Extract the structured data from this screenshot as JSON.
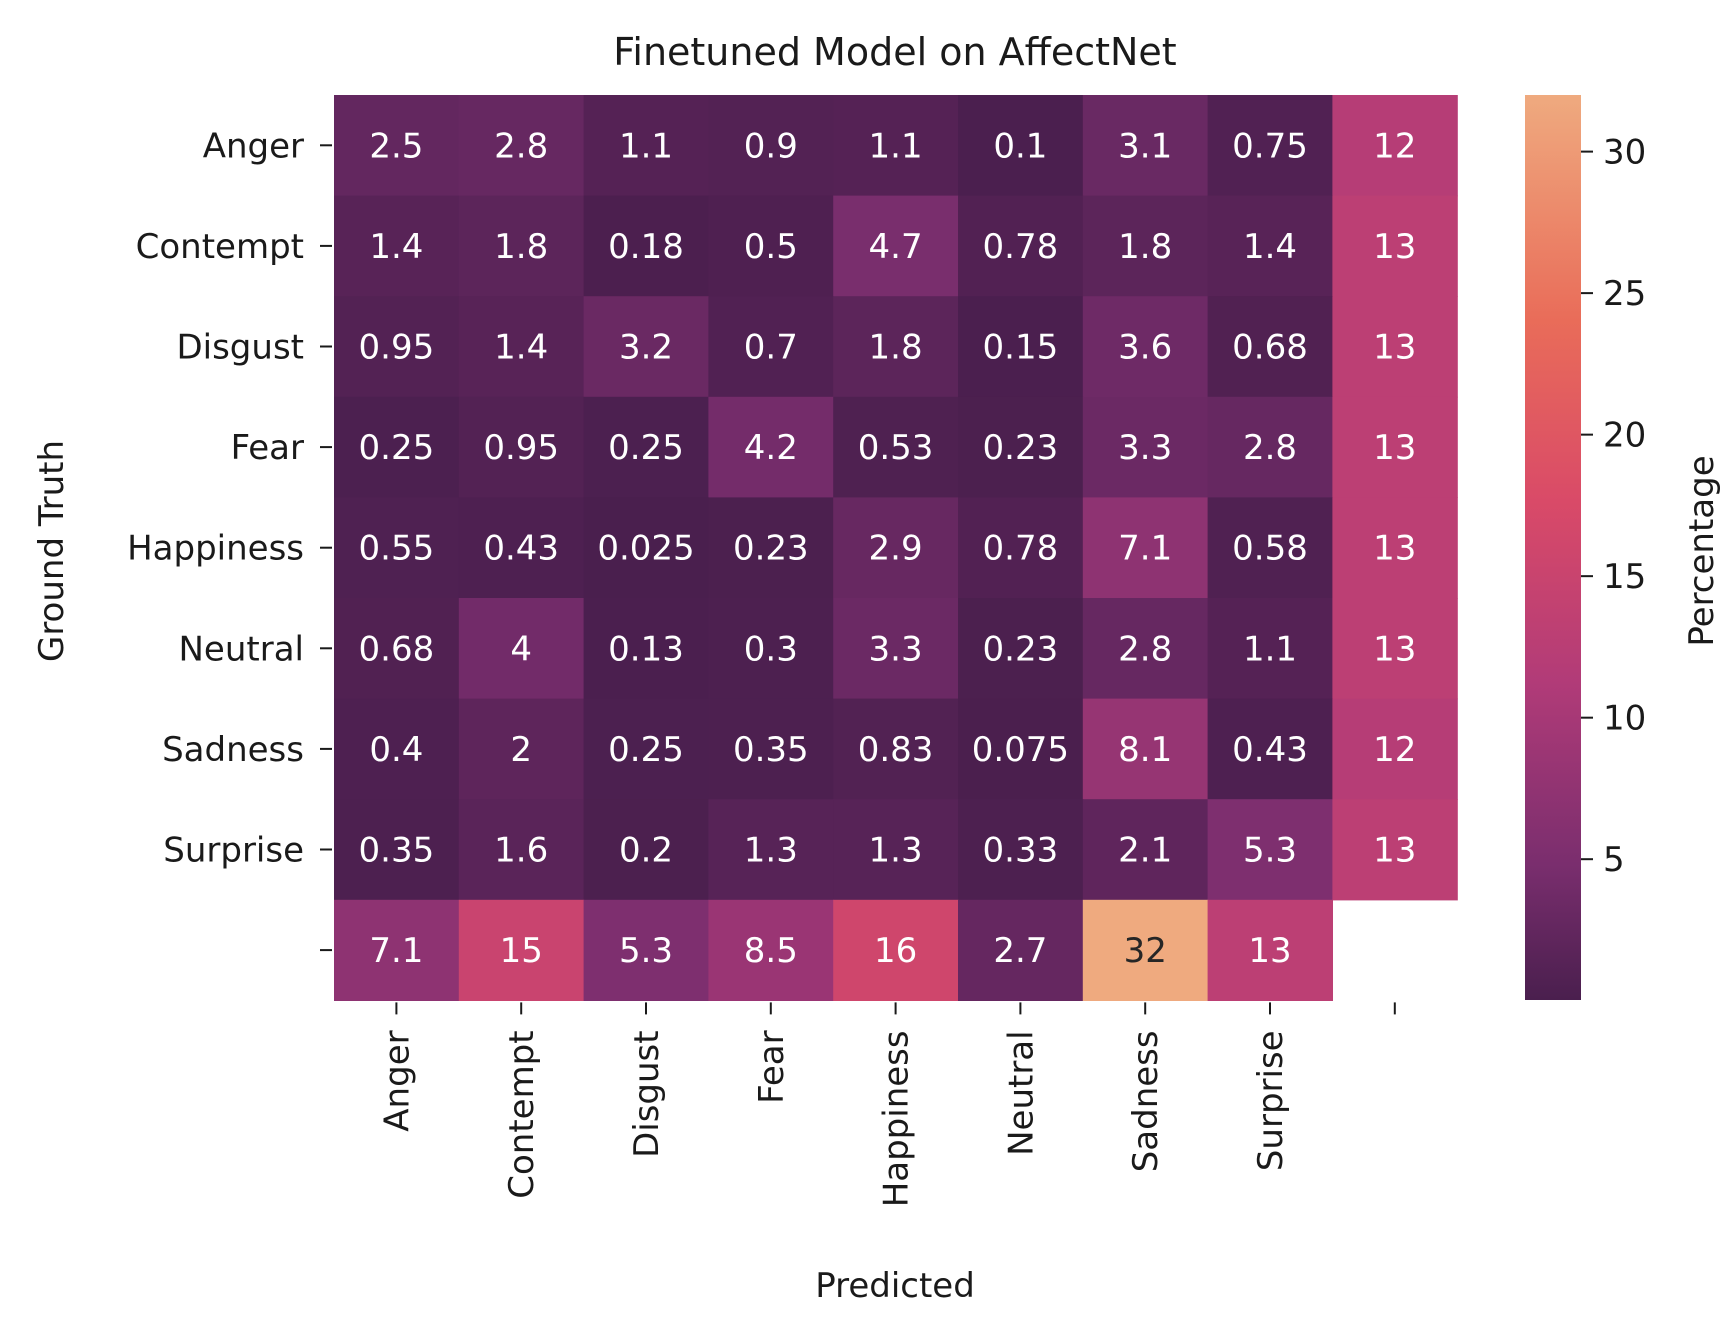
{
  "chart_data": {
    "type": "heatmap",
    "title": "Finetuned Model on AffectNet",
    "xlabel": "Predicted",
    "ylabel": "Ground Truth",
    "x_categories": [
      "Anger",
      "Contempt",
      "Disgust",
      "Fear",
      "Happiness",
      "Neutral",
      "Sadness",
      "Surprise",
      ""
    ],
    "y_categories": [
      "Anger",
      "Contempt",
      "Disgust",
      "Fear",
      "Happiness",
      "Neutral",
      "Sadness",
      "Surprise",
      ""
    ],
    "rows": [
      [
        "2.5",
        "2.8",
        "1.1",
        "0.9",
        "1.1",
        "0.1",
        "3.1",
        "0.75",
        "12"
      ],
      [
        "1.4",
        "1.8",
        "0.18",
        "0.5",
        "4.7",
        "0.78",
        "1.8",
        "1.4",
        "13"
      ],
      [
        "0.95",
        "1.4",
        "3.2",
        "0.7",
        "1.8",
        "0.15",
        "3.6",
        "0.68",
        "13"
      ],
      [
        "0.25",
        "0.95",
        "0.25",
        "4.2",
        "0.53",
        "0.23",
        "3.3",
        "2.8",
        "13"
      ],
      [
        "0.55",
        "0.43",
        "0.025",
        "0.23",
        "2.9",
        "0.78",
        "7.1",
        "0.58",
        "13"
      ],
      [
        "0.68",
        "4",
        "0.13",
        "0.3",
        "3.3",
        "0.23",
        "2.8",
        "1.1",
        "13"
      ],
      [
        "0.4",
        "2",
        "0.25",
        "0.35",
        "0.83",
        "0.075",
        "8.1",
        "0.43",
        "12"
      ],
      [
        "0.35",
        "1.6",
        "0.2",
        "1.3",
        "1.3",
        "0.33",
        "2.1",
        "5.3",
        "13"
      ],
      [
        "7.1",
        "15",
        "5.3",
        "8.5",
        "16",
        "2.7",
        "32",
        "13",
        null
      ]
    ],
    "colorbar": {
      "label": "Percentage",
      "ticks": [
        5,
        10,
        15,
        20,
        25,
        30
      ],
      "range": [
        0.025,
        32
      ],
      "colormap": "flare"
    }
  }
}
